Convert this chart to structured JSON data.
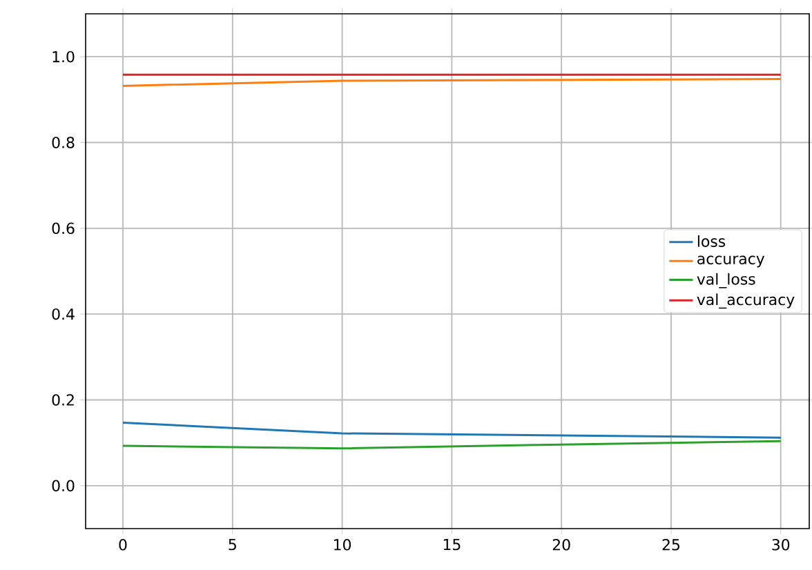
{
  "chart_data": {
    "type": "line",
    "x": [
      0,
      10,
      20,
      30
    ],
    "series": [
      {
        "name": "loss",
        "color": "#1f77b4",
        "values": [
          0.147,
          0.122,
          0.117,
          0.112
        ]
      },
      {
        "name": "accuracy",
        "color": "#ff7f0e",
        "values": [
          0.932,
          0.944,
          0.946,
          0.948
        ]
      },
      {
        "name": "val_loss",
        "color": "#2ca02c",
        "values": [
          0.093,
          0.087,
          0.096,
          0.104
        ]
      },
      {
        "name": "val_accuracy",
        "color": "#d62728",
        "values": [
          0.958,
          0.958,
          0.958,
          0.958
        ]
      }
    ],
    "xlim": [
      -1.7,
      31.3
    ],
    "ylim": [
      -0.1,
      1.1
    ],
    "xticks": [
      0,
      5,
      10,
      15,
      20,
      25,
      30
    ],
    "yticks": [
      {
        "value": 0,
        "label": "0.0"
      },
      {
        "value": 0.2,
        "label": "0.2"
      },
      {
        "value": 0.4,
        "label": "0.4"
      },
      {
        "value": 0.6,
        "label": "0.6"
      },
      {
        "value": 0.8,
        "label": "0.8"
      },
      {
        "value": 1.0,
        "label": "1.0"
      }
    ],
    "grid": true,
    "legend": "right",
    "marker": "none",
    "line_style": "solid"
  }
}
